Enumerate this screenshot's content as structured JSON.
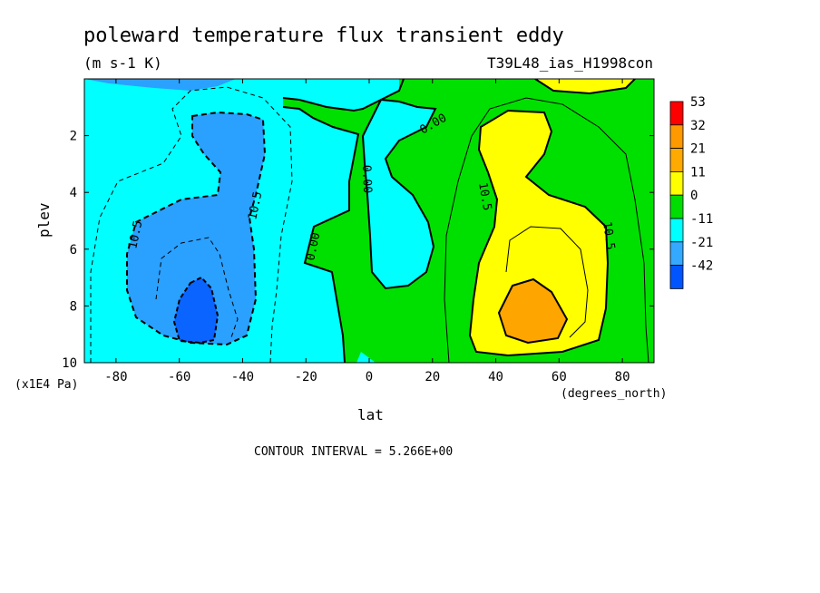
{
  "chart_data": {
    "type": "heatmap",
    "title": "poleward temperature flux transient eddy",
    "units": "(m s-1 K)",
    "run_label": "T39L48_ias_H1998con",
    "xlabel": "lat",
    "xunits": "(degrees_north)",
    "ylabel": "plev",
    "yunits": "(x1E4 Pa)",
    "footer": "CONTOUR INTERVAL = 5.266E+00",
    "xlim": [
      -90,
      90
    ],
    "ylim": [
      10,
      0
    ],
    "x_ticks": [
      -80,
      -60,
      -40,
      -20,
      0,
      20,
      40,
      60,
      80
    ],
    "y_ticks": [
      2,
      4,
      6,
      8,
      10
    ],
    "colorbar": {
      "labels": [
        "53",
        "32",
        "21",
        "11",
        "0",
        "-11",
        "-21",
        "-42"
      ],
      "colors": [
        "#ff0000",
        "#ff9900",
        "#ffaa00",
        "#ffff00",
        "#00dd00",
        "#00ffff",
        "#33aaff",
        "#0055ff"
      ]
    },
    "fill_colors": {
      "negative_strong": "#0a64ff",
      "negative_moderate": "#2aa0ff",
      "negative_weak": "#00ffff",
      "positive_weak": "#00e000",
      "positive_moderate": "#ffff00",
      "positive_strong": "#ffa500"
    },
    "contour_labels": [
      "10.5",
      "10.5",
      "0.00",
      "0.00",
      "0.00",
      "10.5",
      "10.5"
    ],
    "features": [
      {
        "name": "southern minimum",
        "lat": -55,
        "plev": 8.3,
        "range": "below -10.5"
      },
      {
        "name": "northern maximum",
        "lat": 53,
        "plev": 8.3,
        "range": "above 21"
      }
    ]
  }
}
